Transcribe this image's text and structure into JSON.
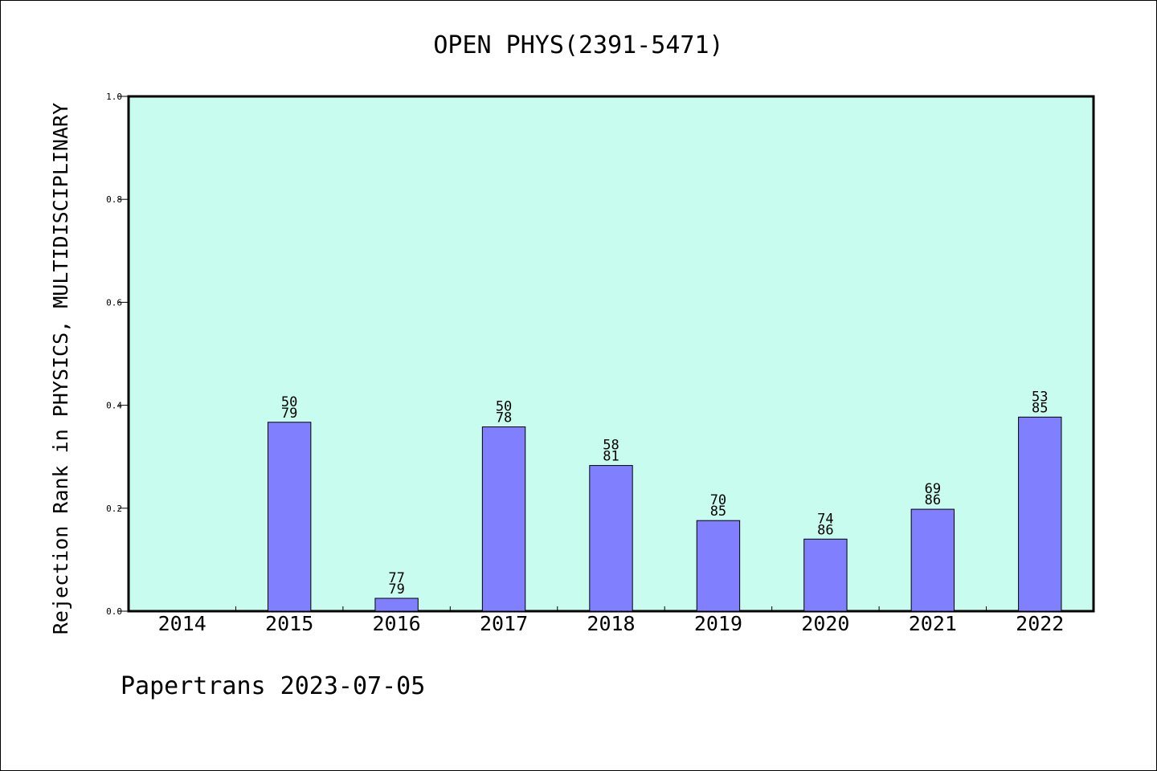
{
  "chart_data": {
    "type": "bar",
    "title": "OPEN PHYS(2391-5471)",
    "xlabel": "",
    "ylabel": "Rejection Rank in PHYSICS, MULTIDISCIPLINARY",
    "ylim": [
      0,
      1.0
    ],
    "yticks": [
      "0.0",
      "0.2",
      "0.4",
      "0.6",
      "0.8",
      "1.0"
    ],
    "ytick_values": [
      0,
      0.2,
      0.4,
      0.6,
      0.8,
      1.0
    ],
    "categories": [
      "2014",
      "2015",
      "2016",
      "2017",
      "2018",
      "2019",
      "2020",
      "2021",
      "2022"
    ],
    "values": [
      0,
      0.367,
      0.025,
      0.358,
      0.283,
      0.176,
      0.14,
      0.198,
      0.377
    ],
    "labels_top": [
      "",
      "50",
      "77",
      "50",
      "58",
      "70",
      "74",
      "69",
      "53"
    ],
    "labels_bottom": [
      "",
      "79",
      "79",
      "78",
      "81",
      "85",
      "86",
      "86",
      "85"
    ],
    "grid": false,
    "legend": "none",
    "colors": {
      "plot_background": "#c8fcee",
      "bar_fill": "#8080ff",
      "bar_stroke": "#000000"
    }
  },
  "footer": {
    "text": "Papertrans 2023-07-05"
  }
}
